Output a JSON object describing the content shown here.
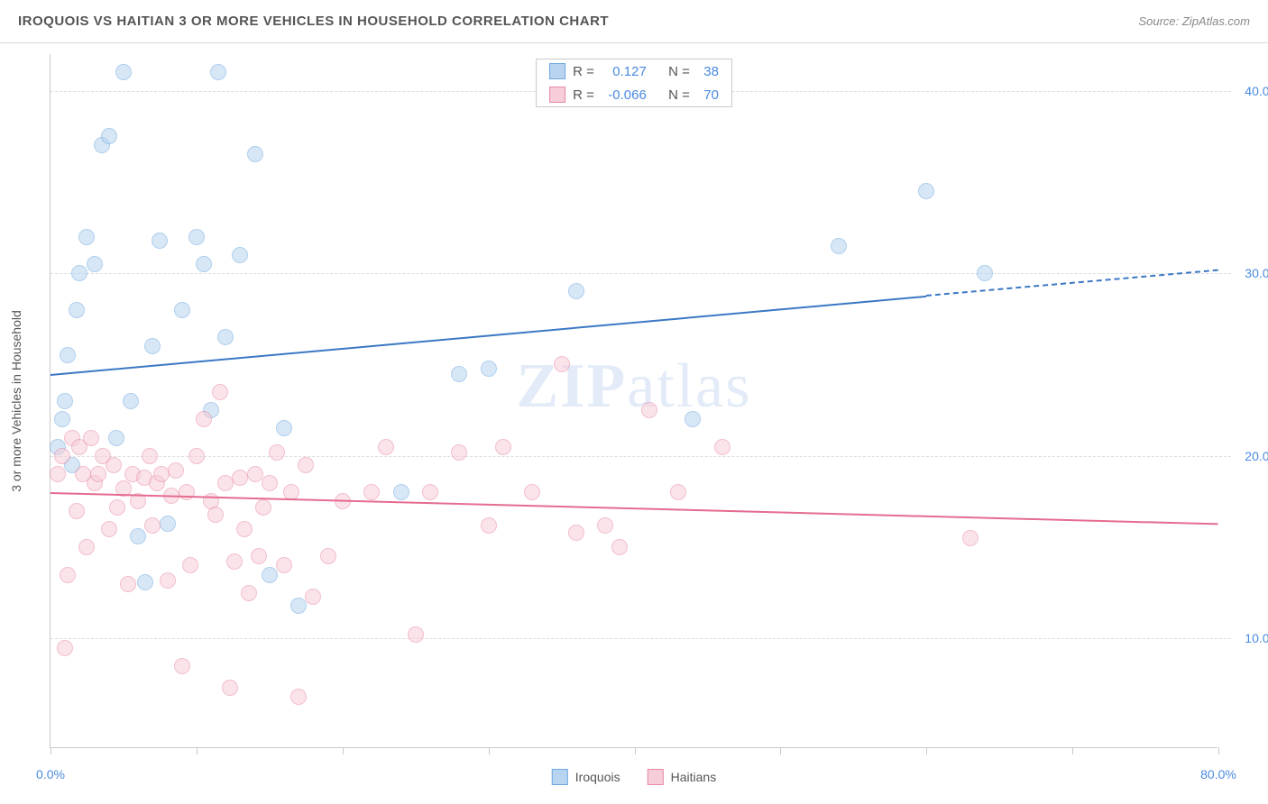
{
  "header": {
    "title": "IROQUOIS VS HAITIAN 3 OR MORE VEHICLES IN HOUSEHOLD CORRELATION CHART",
    "source_prefix": "Source: ",
    "source_name": "ZipAtlas.com"
  },
  "watermark": {
    "zip": "ZIP",
    "atlas": "atlas"
  },
  "chart": {
    "type": "scatter",
    "y_axis_label": "3 or more Vehicles in Household",
    "xlim": [
      0,
      80
    ],
    "ylim": [
      4,
      42
    ],
    "x_ticks": [
      0,
      10,
      20,
      30,
      40,
      50,
      60,
      70,
      80
    ],
    "x_tick_labels": {
      "0": "0.0%",
      "80": "80.0%"
    },
    "y_ticks": [
      10,
      20,
      30,
      40
    ],
    "y_tick_labels": {
      "10": "10.0%",
      "20": "20.0%",
      "30": "30.0%",
      "40": "40.0%"
    },
    "grid_color": "#dddddd",
    "background_color": "#ffffff",
    "axis_color": "#c9c9c9",
    "label_fontsize": 14,
    "tick_color": "#4a8ae0",
    "point_radius": 9,
    "point_opacity": 0.55,
    "series": [
      {
        "name": "Iroquois",
        "fill": "#b8d4f0",
        "stroke": "#6fa8e0",
        "trend_color": "#3b78c4",
        "r_value": "0.127",
        "n_value": "38",
        "trend": {
          "x1": 0,
          "y1": 24.5,
          "x2": 60,
          "y2": 28.8,
          "dash_x2": 80,
          "dash_y2": 30.2
        },
        "points": [
          [
            0.5,
            20.5
          ],
          [
            0.8,
            22
          ],
          [
            1,
            23
          ],
          [
            1.2,
            25.5
          ],
          [
            1.5,
            19.5
          ],
          [
            1.8,
            28
          ],
          [
            2,
            30
          ],
          [
            2.5,
            32
          ],
          [
            3,
            30.5
          ],
          [
            3.5,
            37
          ],
          [
            4,
            37.5
          ],
          [
            4.5,
            21
          ],
          [
            5,
            41
          ],
          [
            5.5,
            23
          ],
          [
            6,
            15.6
          ],
          [
            6.5,
            13.1
          ],
          [
            7,
            26
          ],
          [
            7.5,
            31.8
          ],
          [
            8,
            16.3
          ],
          [
            9,
            28
          ],
          [
            10,
            32
          ],
          [
            10.5,
            30.5
          ],
          [
            11,
            22.5
          ],
          [
            11.5,
            41
          ],
          [
            12,
            26.5
          ],
          [
            13,
            31
          ],
          [
            14,
            36.5
          ],
          [
            15,
            13.5
          ],
          [
            16,
            21.5
          ],
          [
            17,
            11.8
          ],
          [
            24,
            18
          ],
          [
            28,
            24.5
          ],
          [
            30,
            24.8
          ],
          [
            36,
            29
          ],
          [
            44,
            22
          ],
          [
            54,
            31.5
          ],
          [
            60,
            34.5
          ],
          [
            64,
            30
          ]
        ]
      },
      {
        "name": "Haitians",
        "fill": "#f6cdd8",
        "stroke": "#e88ba6",
        "trend_color": "#e56b8f",
        "r_value": "-0.066",
        "n_value": "70",
        "trend": {
          "x1": 0,
          "y1": 18.0,
          "x2": 80,
          "y2": 16.3
        },
        "points": [
          [
            0.5,
            19
          ],
          [
            0.8,
            20
          ],
          [
            1,
            9.5
          ],
          [
            1.2,
            13.5
          ],
          [
            1.5,
            21
          ],
          [
            1.8,
            17
          ],
          [
            2,
            20.5
          ],
          [
            2.2,
            19
          ],
          [
            2.5,
            15
          ],
          [
            2.8,
            21
          ],
          [
            3,
            18.5
          ],
          [
            3.3,
            19
          ],
          [
            3.6,
            20
          ],
          [
            4,
            16
          ],
          [
            4.3,
            19.5
          ],
          [
            4.6,
            17.2
          ],
          [
            5,
            18.2
          ],
          [
            5.3,
            13
          ],
          [
            5.6,
            19
          ],
          [
            6,
            17.5
          ],
          [
            6.4,
            18.8
          ],
          [
            6.8,
            20
          ],
          [
            7,
            16.2
          ],
          [
            7.3,
            18.5
          ],
          [
            7.6,
            19
          ],
          [
            8,
            13.2
          ],
          [
            8.3,
            17.8
          ],
          [
            8.6,
            19.2
          ],
          [
            9,
            8.5
          ],
          [
            9.3,
            18
          ],
          [
            9.6,
            14
          ],
          [
            10,
            20
          ],
          [
            10.5,
            22
          ],
          [
            11,
            17.5
          ],
          [
            11.3,
            16.8
          ],
          [
            11.6,
            23.5
          ],
          [
            12,
            18.5
          ],
          [
            12.3,
            7.3
          ],
          [
            12.6,
            14.2
          ],
          [
            13,
            18.8
          ],
          [
            13.3,
            16
          ],
          [
            13.6,
            12.5
          ],
          [
            14,
            19
          ],
          [
            14.3,
            14.5
          ],
          [
            14.6,
            17.2
          ],
          [
            15,
            18.5
          ],
          [
            15.5,
            20.2
          ],
          [
            16,
            14
          ],
          [
            16.5,
            18
          ],
          [
            17,
            6.8
          ],
          [
            17.5,
            19.5
          ],
          [
            18,
            12.3
          ],
          [
            19,
            14.5
          ],
          [
            20,
            17.5
          ],
          [
            22,
            18
          ],
          [
            23,
            20.5
          ],
          [
            25,
            10.2
          ],
          [
            26,
            18
          ],
          [
            28,
            20.2
          ],
          [
            30,
            16.2
          ],
          [
            31,
            20.5
          ],
          [
            33,
            18
          ],
          [
            35,
            25
          ],
          [
            36,
            15.8
          ],
          [
            38,
            16.2
          ],
          [
            39,
            15
          ],
          [
            41,
            22.5
          ],
          [
            43,
            18
          ],
          [
            63,
            15.5
          ],
          [
            46,
            20.5
          ]
        ]
      }
    ]
  },
  "legend_stats": {
    "r_label": "R =",
    "n_label": "N ="
  },
  "bottom_legend": {
    "items": [
      "Iroquois",
      "Haitians"
    ]
  }
}
